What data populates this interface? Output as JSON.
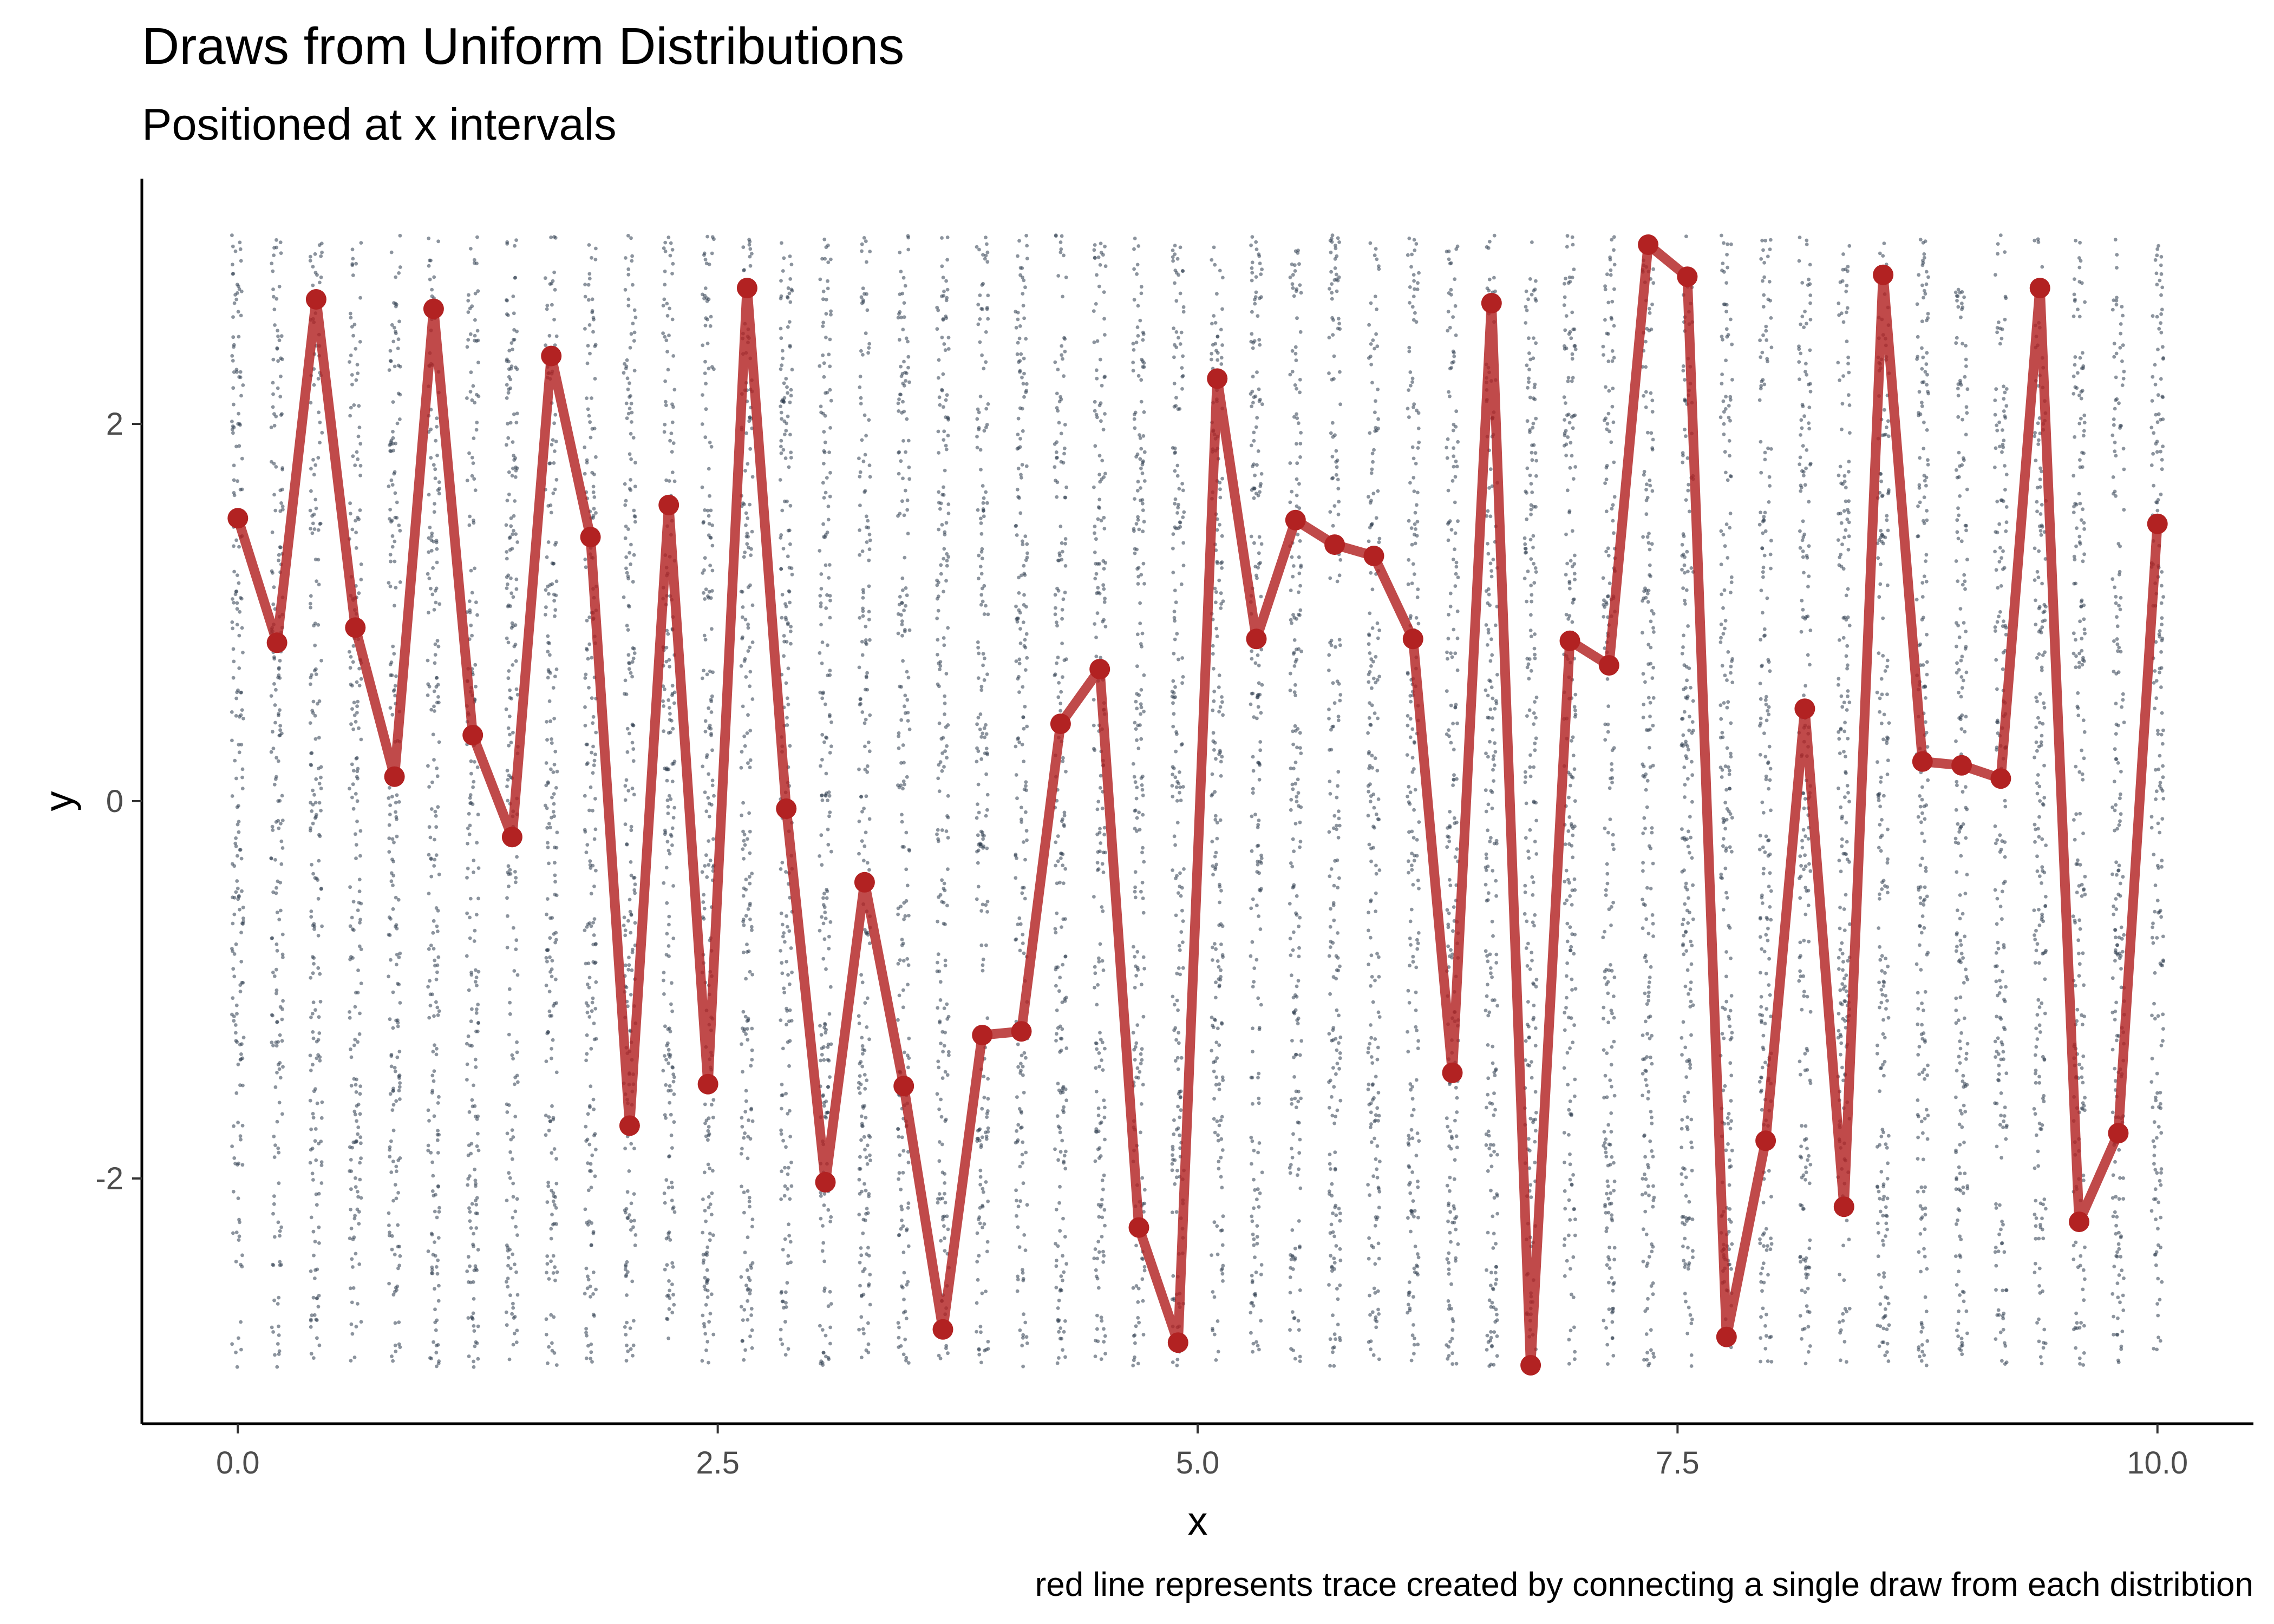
{
  "chart_data": {
    "type": "scatter",
    "title": "Draws from Uniform Distributions",
    "subtitle": "Positioned at x intervals",
    "xlabel": "x",
    "ylabel": "y",
    "caption": "red line represents trace created by connecting a single draw from each distribtion",
    "xlim": [
      -0.5,
      10.5
    ],
    "ylim": [
      -3.3,
      3.3
    ],
    "x_ticks": [
      0.0,
      2.5,
      5.0,
      7.5,
      10.0
    ],
    "x_tick_labels": [
      "0.0",
      "2.5",
      "5.0",
      "7.5",
      "10.0"
    ],
    "y_ticks": [
      -2,
      0,
      2
    ],
    "y_tick_labels": [
      "-2",
      "0",
      "2"
    ],
    "grid": false,
    "uniform_range": [
      -3,
      3
    ],
    "distribution_x": [
      0.0,
      0.204,
      0.408,
      0.612,
      0.816,
      1.02,
      1.224,
      1.429,
      1.633,
      1.837,
      2.041,
      2.245,
      2.449,
      2.653,
      2.857,
      3.061,
      3.265,
      3.469,
      3.673,
      3.878,
      4.082,
      4.286,
      4.49,
      4.694,
      4.898,
      5.102,
      5.306,
      5.51,
      5.714,
      5.918,
      6.122,
      6.327,
      6.531,
      6.735,
      6.939,
      7.143,
      7.347,
      7.551,
      7.755,
      7.959,
      8.163,
      8.367,
      8.571,
      8.776,
      8.98,
      9.184,
      9.388,
      9.592,
      9.796,
      10.0
    ],
    "series": [
      {
        "name": "",
        "color": "#2e3d4f",
        "kind": "uniform-draws"
      },
      {
        "name": "",
        "color": "#b22222",
        "kind": "trace",
        "y": [
          1.5,
          0.84,
          2.66,
          0.92,
          0.13,
          2.61,
          0.35,
          -0.19,
          2.36,
          1.4,
          -1.72,
          1.57,
          -1.5,
          2.72,
          -0.04,
          -2.02,
          -0.43,
          -1.51,
          -2.8,
          -1.24,
          -1.22,
          0.41,
          0.7,
          -2.26,
          -2.87,
          2.24,
          0.86,
          1.49,
          1.36,
          1.3,
          0.86,
          -1.44,
          2.64,
          -2.99,
          0.85,
          0.72,
          2.95,
          2.78,
          -2.84,
          -1.8,
          0.49,
          -2.15,
          2.79,
          0.21,
          0.19,
          0.12,
          2.72,
          -2.23,
          -1.76,
          1.47
        ]
      }
    ]
  }
}
